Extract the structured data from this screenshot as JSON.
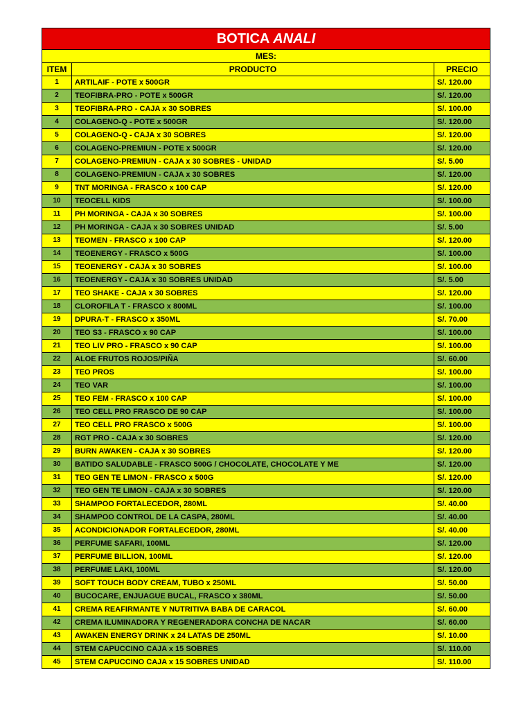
{
  "title_part1": "BOTICA ",
  "title_part2": "ANALI",
  "mes_label": "MES:",
  "headers": {
    "item": "ITEM",
    "producto": "PRODUCTO",
    "precio": "PRECIO"
  },
  "colors": {
    "yellow": "#ffff00",
    "green": "#8bbf4d",
    "red": "#e60000",
    "black": "#000000",
    "white": "#ffffff"
  },
  "rows": [
    {
      "n": 1,
      "producto": "ARTILAIF - POTE x 500GR",
      "precio": "S/. 120.00",
      "bg": "y"
    },
    {
      "n": 2,
      "producto": "TEOFIBRA-PRO - POTE x 500GR",
      "precio": "S/. 120.00",
      "bg": "g"
    },
    {
      "n": 3,
      "producto": "TEOFIBRA-PRO - CAJA x 30 SOBRES",
      "precio": "S/. 100.00",
      "bg": "y"
    },
    {
      "n": 4,
      "producto": "COLAGENO-Q - POTE x 500GR",
      "precio": "S/. 120.00",
      "bg": "g"
    },
    {
      "n": 5,
      "producto": "COLAGENO-Q - CAJA x 30 SOBRES",
      "precio": "S/. 120.00",
      "bg": "y"
    },
    {
      "n": 6,
      "producto": "COLAGENO-PREMIUN - POTE x 500GR",
      "precio": "S/. 120.00",
      "bg": "g"
    },
    {
      "n": 7,
      "producto": "COLAGENO-PREMIUN - CAJA x 30 SOBRES - UNIDAD",
      "precio": "S/. 5.00",
      "bg": "y"
    },
    {
      "n": 8,
      "producto": "COLAGENO-PREMIUN - CAJA x 30 SOBRES",
      "precio": "S/. 120.00",
      "bg": "g"
    },
    {
      "n": 9,
      "producto": "TNT MORINGA - FRASCO x 100 CAP",
      "precio": "S/. 120.00",
      "bg": "y"
    },
    {
      "n": 10,
      "producto": "TEOCELL KIDS",
      "precio": "S/. 100.00",
      "bg": "g"
    },
    {
      "n": 11,
      "producto": "PH MORINGA - CAJA x 30 SOBRES",
      "precio": "S/. 100.00",
      "bg": "y"
    },
    {
      "n": 12,
      "producto": "PH MORINGA - CAJA x 30 SOBRES UNIDAD",
      "precio": "S/. 5.00",
      "bg": "g"
    },
    {
      "n": 13,
      "producto": "TEOMEN - FRASCO x 100 CAP",
      "precio": "S/. 120.00",
      "bg": "y"
    },
    {
      "n": 14,
      "producto": "TEOENERGY - FRASCO x 500G",
      "precio": "S/. 100.00",
      "bg": "g"
    },
    {
      "n": 15,
      "producto": "TEOENERGY - CAJA x 30 SOBRES",
      "precio": "S/. 100.00",
      "bg": "y"
    },
    {
      "n": 16,
      "producto": "TEOENERGY - CAJA x 30 SOBRES UNIDAD",
      "precio": "S/. 5.00",
      "bg": "g"
    },
    {
      "n": 17,
      "producto": "TEO SHAKE - CAJA x 30 SOBRES",
      "precio": "S/. 120.00",
      "bg": "y"
    },
    {
      "n": 18,
      "producto": "CLOROFILA T - FRASCO x 800ML",
      "precio": "S/. 100.00",
      "bg": "g"
    },
    {
      "n": 19,
      "producto": "DPURA-T - FRASCO x 350ML",
      "precio": "S/. 70.00",
      "bg": "y"
    },
    {
      "n": 20,
      "producto": "TEO S3 - FRASCO x 90 CAP",
      "precio": "S/. 100.00",
      "bg": "g"
    },
    {
      "n": 21,
      "producto": "TEO LIV PRO - FRASCO x 90 CAP",
      "precio": "S/. 100.00",
      "bg": "y"
    },
    {
      "n": 22,
      "producto": "ALOE FRUTOS ROJOS/PIÑA",
      "precio": "S/. 60.00",
      "bg": "g"
    },
    {
      "n": 23,
      "producto": "TEO PROS",
      "precio": "S/. 100.00",
      "bg": "y"
    },
    {
      "n": 24,
      "producto": "TEO VAR",
      "precio": "S/. 100.00",
      "bg": "g"
    },
    {
      "n": 25,
      "producto": "TEO FEM - FRASCO x 100 CAP",
      "precio": "S/. 100.00",
      "bg": "y"
    },
    {
      "n": 26,
      "producto": "TEO CELL PRO FRASCO DE 90 CAP",
      "precio": "S/. 100.00",
      "bg": "g"
    },
    {
      "n": 27,
      "producto": "TEO CELL PRO FRASCO x 500G",
      "precio": "S/. 100.00",
      "bg": "y"
    },
    {
      "n": 28,
      "producto": "RGT PRO - CAJA x 30 SOBRES",
      "precio": "S/. 120.00",
      "bg": "g"
    },
    {
      "n": 29,
      "producto": "BURN AWAKEN - CAJA x 30 SOBRES",
      "precio": "S/. 120.00",
      "bg": "y"
    },
    {
      "n": 30,
      "producto": "BATIDO SALUDABLE - FRASCO 500G / CHOCOLATE, CHOCOLATE Y ME",
      "precio": "S/. 120.00",
      "bg": "g"
    },
    {
      "n": 31,
      "producto": "TEO GEN TE LIMON - FRASCO x 500G",
      "precio": "S/. 120.00",
      "bg": "y"
    },
    {
      "n": 32,
      "producto": "TEO GEN TE LIMON - CAJA x 30 SOBRES",
      "precio": "S/. 120.00",
      "bg": "g"
    },
    {
      "n": 33,
      "producto": "SHAMPOO FORTALECEDOR, 280ML",
      "precio": "S/. 40.00",
      "bg": "y"
    },
    {
      "n": 34,
      "producto": "SHAMPOO CONTROL DE LA CASPA, 280ML",
      "precio": "S/. 40.00",
      "bg": "g"
    },
    {
      "n": 35,
      "producto": "ACONDICIONADOR FORTALECEDOR, 280ML",
      "precio": "S/. 40.00",
      "bg": "y"
    },
    {
      "n": 36,
      "producto": "PERFUME SAFARI, 100ML",
      "precio": "S/. 120.00",
      "bg": "g"
    },
    {
      "n": 37,
      "producto": "PERFUME BILLION, 100ML",
      "precio": "S/. 120.00",
      "bg": "y"
    },
    {
      "n": 38,
      "producto": "PERFUME LAKI, 100ML",
      "precio": "S/. 120.00",
      "bg": "g"
    },
    {
      "n": 39,
      "producto": "SOFT TOUCH BODY CREAM, TUBO x 250ML",
      "precio": "S/. 50.00",
      "bg": "y"
    },
    {
      "n": 40,
      "producto": "BUCOCARE, ENJUAGUE BUCAL, FRASCO x 380ML",
      "precio": "S/. 50.00",
      "bg": "g"
    },
    {
      "n": 41,
      "producto": "CREMA REAFIRMANTE Y NUTRITIVA BABA DE CARACOL",
      "precio": "S/. 60.00",
      "bg": "y"
    },
    {
      "n": 42,
      "producto": "CREMA ILUMINADORA Y REGENERADORA CONCHA DE NACAR",
      "precio": "S/. 60.00",
      "bg": "g"
    },
    {
      "n": 43,
      "producto": "AWAKEN ENERGY DRINK x 24 LATAS DE 250ML",
      "precio": "S/. 10.00",
      "bg": "y"
    },
    {
      "n": 44,
      "producto": "STEM CAPUCCINO CAJA x 15 SOBRES",
      "precio": "S/. 110.00",
      "bg": "g"
    },
    {
      "n": 45,
      "producto": "STEM CAPUCCINO CAJA x 15 SOBRES UNIDAD",
      "precio": "S/. 110.00",
      "bg": "y"
    }
  ]
}
